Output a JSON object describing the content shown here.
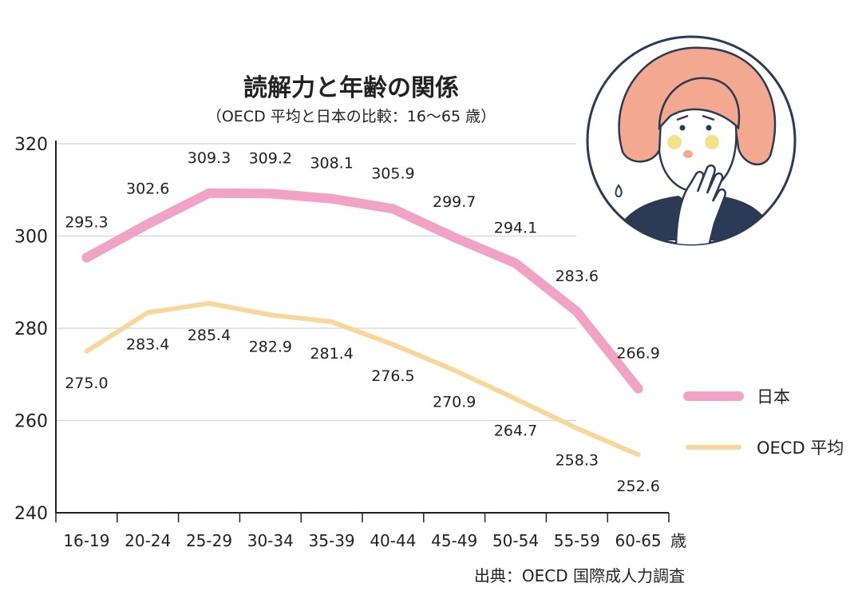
{
  "chart_data": {
    "type": "line",
    "title": "読解力と年齢の関係",
    "subtitle": "（OECD 平均と日本の比較：16〜65 歳）",
    "categories": [
      "16-19",
      "20-24",
      "25-29",
      "30-34",
      "35-39",
      "40-44",
      "45-49",
      "50-54",
      "55-59",
      "60-65"
    ],
    "x_unit": "歳",
    "series": [
      {
        "name": "日本",
        "color": "#f0a3c4",
        "values": [
          295.3,
          302.6,
          309.3,
          309.2,
          308.1,
          305.9,
          299.7,
          294.1,
          283.6,
          266.9
        ],
        "labels": [
          "295.3",
          "302.6",
          "309.3",
          "309.2",
          "308.1",
          "305.9",
          "299.7",
          "294.1",
          "283.6",
          "266.9"
        ]
      },
      {
        "name": "OECD 平均",
        "color": "#f9d79b",
        "values": [
          275.0,
          283.4,
          285.4,
          282.9,
          281.4,
          276.5,
          270.9,
          264.7,
          258.3,
          252.6
        ],
        "labels": [
          "275.0",
          "283.4",
          "285.4",
          "282.9",
          "281.4",
          "276.5",
          "270.9",
          "264.7",
          "258.3",
          "252.6"
        ]
      }
    ],
    "ylim": [
      240,
      320
    ],
    "yticks": [
      "240",
      "260",
      "280",
      "300",
      "320"
    ],
    "grid": true,
    "legend_position": "right",
    "source": "出典：OECD 国際成人力調査"
  },
  "illustration": {
    "name": "worried-woman-illustration",
    "colors": {
      "hair": "#f2a98f",
      "outline": "#2b3a55",
      "cheek": "#f6e08a",
      "cloth": "#2b3a55"
    }
  }
}
